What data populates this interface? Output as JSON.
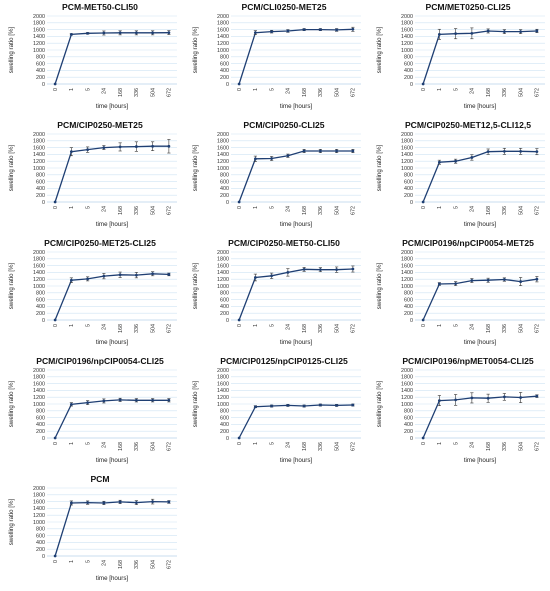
{
  "chart_data": [
    {
      "type": "line",
      "title": "PCM-MET50-CLI50",
      "categories": [
        "0",
        "1",
        "5",
        "24",
        "168",
        "336",
        "504",
        "672"
      ],
      "values": [
        0,
        1460,
        1490,
        1500,
        1505,
        1505,
        1505,
        1510
      ],
      "errors": [
        0,
        20,
        25,
        60,
        60,
        60,
        60,
        60
      ],
      "xlabel": "time [hours]",
      "ylabel": "swelling ratio [%]",
      "ylim": [
        0,
        2000
      ],
      "yticks": [
        0,
        200,
        400,
        600,
        800,
        1000,
        1200,
        1400,
        1600,
        1800,
        2000
      ]
    },
    {
      "type": "line",
      "title": "PCM/CLI0250-MET25",
      "categories": [
        "0",
        "1",
        "5",
        "24",
        "168",
        "336",
        "504",
        "672"
      ],
      "values": [
        0,
        1510,
        1540,
        1560,
        1600,
        1600,
        1590,
        1610
      ],
      "errors": [
        0,
        60,
        40,
        40,
        30,
        30,
        40,
        60
      ],
      "xlabel": "time [hours]",
      "ylabel": "swelling ratio [%]",
      "ylim": [
        0,
        2000
      ],
      "yticks": [
        0,
        200,
        400,
        600,
        800,
        1000,
        1200,
        1400,
        1600,
        1800,
        2000
      ]
    },
    {
      "type": "line",
      "title": "PCM/MET0250-CLI25",
      "categories": [
        "0",
        "1",
        "5",
        "24",
        "168",
        "336",
        "504",
        "672"
      ],
      "values": [
        0,
        1460,
        1480,
        1490,
        1560,
        1540,
        1540,
        1560
      ],
      "errors": [
        0,
        150,
        150,
        160,
        60,
        60,
        60,
        50
      ],
      "xlabel": "time [hours]",
      "ylabel": "swelling ratio [%]",
      "ylim": [
        0,
        2000
      ],
      "yticks": [
        0,
        200,
        400,
        600,
        800,
        1000,
        1200,
        1400,
        1600,
        1800,
        2000
      ]
    },
    {
      "type": "line",
      "title": "PCM/CIP0250-MET25",
      "categories": [
        "0",
        "1",
        "5",
        "24",
        "168",
        "336",
        "504",
        "672"
      ],
      "values": [
        0,
        1480,
        1540,
        1600,
        1620,
        1630,
        1640,
        1640
      ],
      "errors": [
        0,
        120,
        80,
        60,
        120,
        140,
        130,
        200
      ],
      "xlabel": "time [hours]",
      "ylabel": "swelling ratio [%]",
      "ylim": [
        0,
        2000
      ],
      "yticks": [
        0,
        200,
        400,
        600,
        800,
        1000,
        1200,
        1400,
        1600,
        1800,
        2000
      ]
    },
    {
      "type": "line",
      "title": "PCM/CIP0250-CLI25",
      "categories": [
        "0",
        "1",
        "5",
        "24",
        "168",
        "336",
        "504",
        "672"
      ],
      "values": [
        0,
        1270,
        1280,
        1360,
        1500,
        1500,
        1500,
        1500
      ],
      "errors": [
        0,
        80,
        60,
        50,
        50,
        50,
        50,
        50
      ],
      "xlabel": "time [hours]",
      "ylabel": "swelling ratio [%]",
      "ylim": [
        0,
        2000
      ],
      "yticks": [
        0,
        200,
        400,
        600,
        800,
        1000,
        1200,
        1400,
        1600,
        1800,
        2000
      ]
    },
    {
      "type": "line",
      "title": "PCM/CIP0250-MET12,5-CLI12,5",
      "categories": [
        "0",
        "1",
        "5",
        "24",
        "168",
        "336",
        "504",
        "672"
      ],
      "values": [
        0,
        1170,
        1200,
        1310,
        1480,
        1490,
        1490,
        1480
      ],
      "errors": [
        0,
        60,
        60,
        80,
        80,
        90,
        90,
        90
      ],
      "xlabel": "time [hours]",
      "ylabel": "swelling ratio [%]",
      "ylim": [
        0,
        2000
      ],
      "yticks": [
        0,
        200,
        400,
        600,
        800,
        1000,
        1200,
        1400,
        1600,
        1800,
        2000
      ]
    },
    {
      "type": "line",
      "title": "PCM/CIP0250-MET25-CLI25",
      "categories": [
        "0",
        "1",
        "5",
        "24",
        "168",
        "336",
        "504",
        "672"
      ],
      "values": [
        0,
        1170,
        1210,
        1290,
        1330,
        1320,
        1360,
        1340
      ],
      "errors": [
        0,
        70,
        60,
        80,
        80,
        80,
        60,
        40
      ],
      "xlabel": "time [hours]",
      "ylabel": "swelling ratio [%]",
      "ylim": [
        0,
        2000
      ],
      "yticks": [
        0,
        200,
        400,
        600,
        800,
        1000,
        1200,
        1400,
        1600,
        1800,
        2000
      ]
    },
    {
      "type": "line",
      "title": "PCM/CIP0250-MET50-CLI50",
      "categories": [
        "0",
        "1",
        "5",
        "24",
        "168",
        "336",
        "504",
        "672"
      ],
      "values": [
        0,
        1250,
        1300,
        1400,
        1490,
        1480,
        1480,
        1500
      ],
      "errors": [
        0,
        100,
        80,
        110,
        60,
        60,
        80,
        90
      ],
      "xlabel": "time [hours]",
      "ylabel": "swelling ratio [%]",
      "ylim": [
        0,
        2000
      ],
      "yticks": [
        0,
        200,
        400,
        600,
        800,
        1000,
        1200,
        1400,
        1600,
        1800,
        2000
      ]
    },
    {
      "type": "line",
      "title": "PCM/CIP0196/npCIP0054-MET25",
      "categories": [
        "0",
        "1",
        "5",
        "24",
        "168",
        "336",
        "504",
        "672"
      ],
      "values": [
        0,
        1060,
        1070,
        1160,
        1170,
        1190,
        1130,
        1200
      ],
      "errors": [
        0,
        40,
        60,
        60,
        60,
        50,
        120,
        80
      ],
      "xlabel": "time [hours]",
      "ylabel": "swelling ratio [%]",
      "ylim": [
        0,
        2000
      ],
      "yticks": [
        0,
        200,
        400,
        600,
        800,
        1000,
        1200,
        1400,
        1600,
        1800,
        2000
      ]
    },
    {
      "type": "line",
      "title": "PCM/CIP0196/npCIP0054-CLI25",
      "categories": [
        "0",
        "1",
        "5",
        "24",
        "168",
        "336",
        "504",
        "672"
      ],
      "values": [
        0,
        990,
        1040,
        1090,
        1120,
        1110,
        1110,
        1110
      ],
      "errors": [
        0,
        50,
        60,
        60,
        50,
        50,
        50,
        50
      ],
      "xlabel": "time [hours]",
      "ylabel": "swelling ratio [%]",
      "ylim": [
        0,
        2000
      ],
      "yticks": [
        0,
        200,
        400,
        600,
        800,
        1000,
        1200,
        1400,
        1600,
        1800,
        2000
      ]
    },
    {
      "type": "line",
      "title": "PCM/CIP0125/npCIP0125-CLI25",
      "categories": [
        "0",
        "1",
        "5",
        "24",
        "168",
        "336",
        "504",
        "672"
      ],
      "values": [
        0,
        920,
        940,
        960,
        940,
        970,
        960,
        970
      ],
      "errors": [
        0,
        30,
        30,
        30,
        30,
        30,
        30,
        30
      ],
      "xlabel": "time [hours]",
      "ylabel": "swelling ratio [%]",
      "ylim": [
        0,
        2000
      ],
      "yticks": [
        0,
        200,
        400,
        600,
        800,
        1000,
        1200,
        1400,
        1600,
        1800,
        2000
      ]
    },
    {
      "type": "line",
      "title": "PCM/CIP0196/npMET0054-CLI25",
      "categories": [
        "0",
        "1",
        "5",
        "24",
        "168",
        "336",
        "504",
        "672"
      ],
      "values": [
        0,
        1100,
        1120,
        1180,
        1170,
        1210,
        1190,
        1230
      ],
      "errors": [
        0,
        150,
        160,
        150,
        120,
        100,
        150,
        40
      ],
      "xlabel": "time [hours]",
      "ylabel": "swelling ratio [%]",
      "ylim": [
        0,
        2000
      ],
      "yticks": [
        0,
        200,
        400,
        600,
        800,
        1000,
        1200,
        1400,
        1600,
        1800,
        2000
      ]
    },
    {
      "type": "line",
      "title": "PCM",
      "categories": [
        "0",
        "1",
        "5",
        "24",
        "168",
        "336",
        "504",
        "672"
      ],
      "values": [
        0,
        1560,
        1570,
        1560,
        1590,
        1570,
        1600,
        1590
      ],
      "errors": [
        0,
        60,
        50,
        50,
        50,
        60,
        70,
        40
      ],
      "xlabel": "time [hours]",
      "ylabel": "swelling ratio [%]",
      "ylim": [
        0,
        2000
      ],
      "yticks": [
        0,
        200,
        400,
        600,
        800,
        1000,
        1200,
        1400,
        1600,
        1800,
        2000
      ]
    }
  ],
  "colors": {
    "series": "#1f3f73",
    "grid": "#cfe3f3",
    "text": "#333333"
  }
}
